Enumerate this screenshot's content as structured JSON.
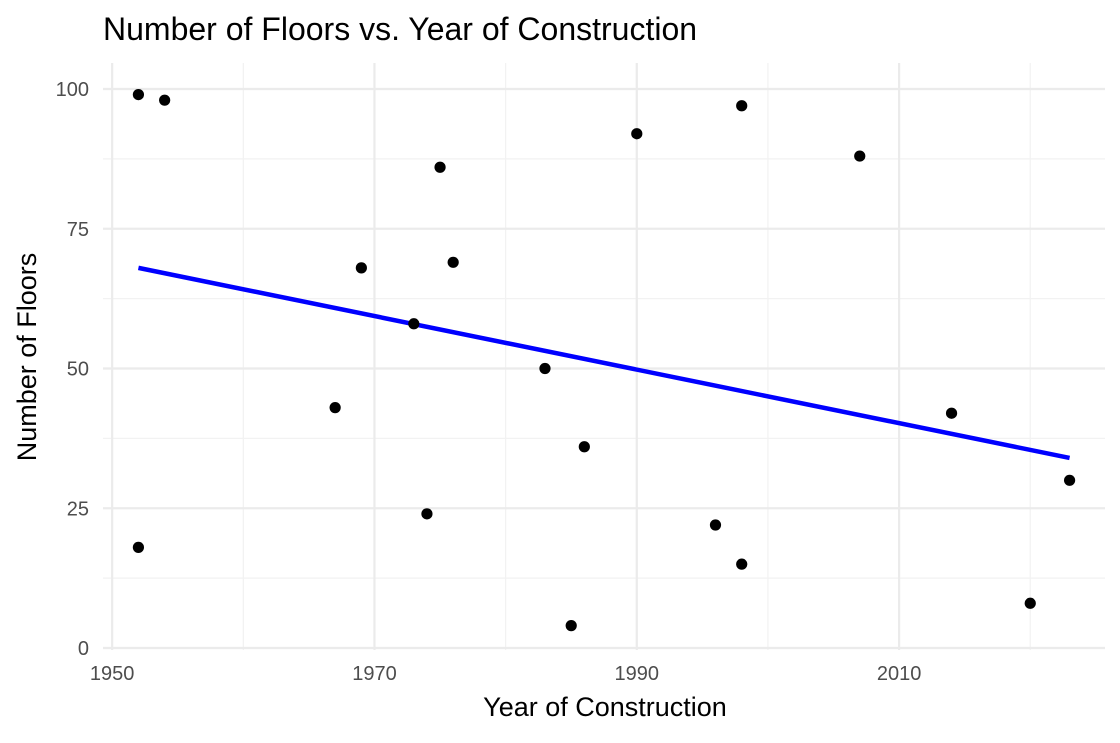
{
  "chart_data": {
    "type": "scatter",
    "title": "Number of Floors vs. Year of Construction",
    "xlabel": "Year of Construction",
    "ylabel": "Number of Floors",
    "xlim": [
      1949.3,
      2025.7
    ],
    "ylim": [
      0,
      100
    ],
    "x_ticks": [
      1950,
      1970,
      1990,
      2010
    ],
    "x_tick_labels": [
      "1950",
      "1970",
      "1990",
      "2010"
    ],
    "y_ticks": [
      0,
      25,
      50,
      75,
      100
    ],
    "y_tick_labels": [
      "0",
      "25",
      "50",
      "75",
      "100"
    ],
    "grid": true,
    "point_color": "#000000",
    "trend_color": "#0000ff",
    "points": [
      {
        "x": 1952,
        "y": 99
      },
      {
        "x": 1954,
        "y": 98
      },
      {
        "x": 1952,
        "y": 18
      },
      {
        "x": 1967,
        "y": 43
      },
      {
        "x": 1969,
        "y": 68
      },
      {
        "x": 1973,
        "y": 58
      },
      {
        "x": 1974,
        "y": 24
      },
      {
        "x": 1975,
        "y": 86
      },
      {
        "x": 1976,
        "y": 69
      },
      {
        "x": 1983,
        "y": 50
      },
      {
        "x": 1985,
        "y": 4
      },
      {
        "x": 1986,
        "y": 36
      },
      {
        "x": 1990,
        "y": 92
      },
      {
        "x": 1996,
        "y": 22
      },
      {
        "x": 1998,
        "y": 97
      },
      {
        "x": 1998,
        "y": 15
      },
      {
        "x": 2007,
        "y": 88
      },
      {
        "x": 2014,
        "y": 42
      },
      {
        "x": 2020,
        "y": 8
      },
      {
        "x": 2023,
        "y": 30
      }
    ],
    "trend_line": {
      "x": [
        1952,
        2023
      ],
      "y": [
        68,
        34
      ]
    }
  }
}
